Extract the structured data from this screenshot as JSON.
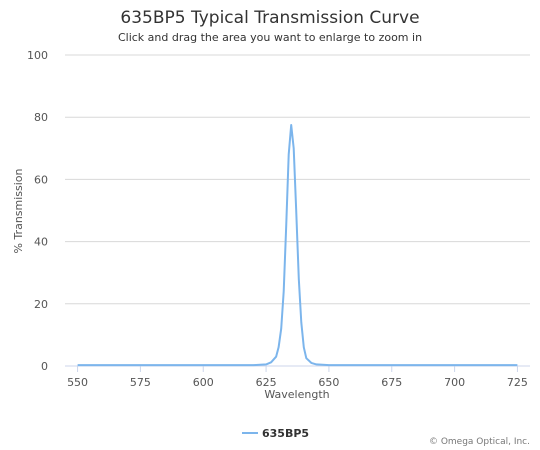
{
  "chart": {
    "title": "635BP5 Typical Transmission Curve",
    "subtitle": "Click and drag the area you want to enlarge to zoom in",
    "credit": "© Omega Optical, Inc."
  },
  "chart_data": {
    "type": "line",
    "title": "635BP5 Typical Transmission Curve",
    "subtitle": "Click and drag the area you want to enlarge to zoom in",
    "xlabel": "Wavelength",
    "ylabel": "% Transmission",
    "xlim": [
      545,
      730
    ],
    "ylim": [
      0,
      100
    ],
    "x_ticks": [
      550,
      575,
      600,
      625,
      650,
      675,
      700,
      725
    ],
    "y_ticks": [
      0,
      20,
      40,
      60,
      80,
      100
    ],
    "grid": "horizontal",
    "legend_position": "bottom-center",
    "series": [
      {
        "name": "635BP5",
        "color": "#7cb5ec",
        "x": [
          550,
          600,
          620,
          625,
          627,
          629,
          630,
          631,
          632,
          633,
          634,
          635,
          636,
          637,
          638,
          639,
          640,
          641,
          643,
          645,
          650,
          675,
          700,
          725
        ],
        "y": [
          0.3,
          0.3,
          0.3,
          0.5,
          1.2,
          3.0,
          6.0,
          12.0,
          24.0,
          45.0,
          68.0,
          77.5,
          70.0,
          50.0,
          28.0,
          14.0,
          6.0,
          2.5,
          1.0,
          0.5,
          0.3,
          0.3,
          0.3,
          0.3
        ]
      }
    ]
  }
}
